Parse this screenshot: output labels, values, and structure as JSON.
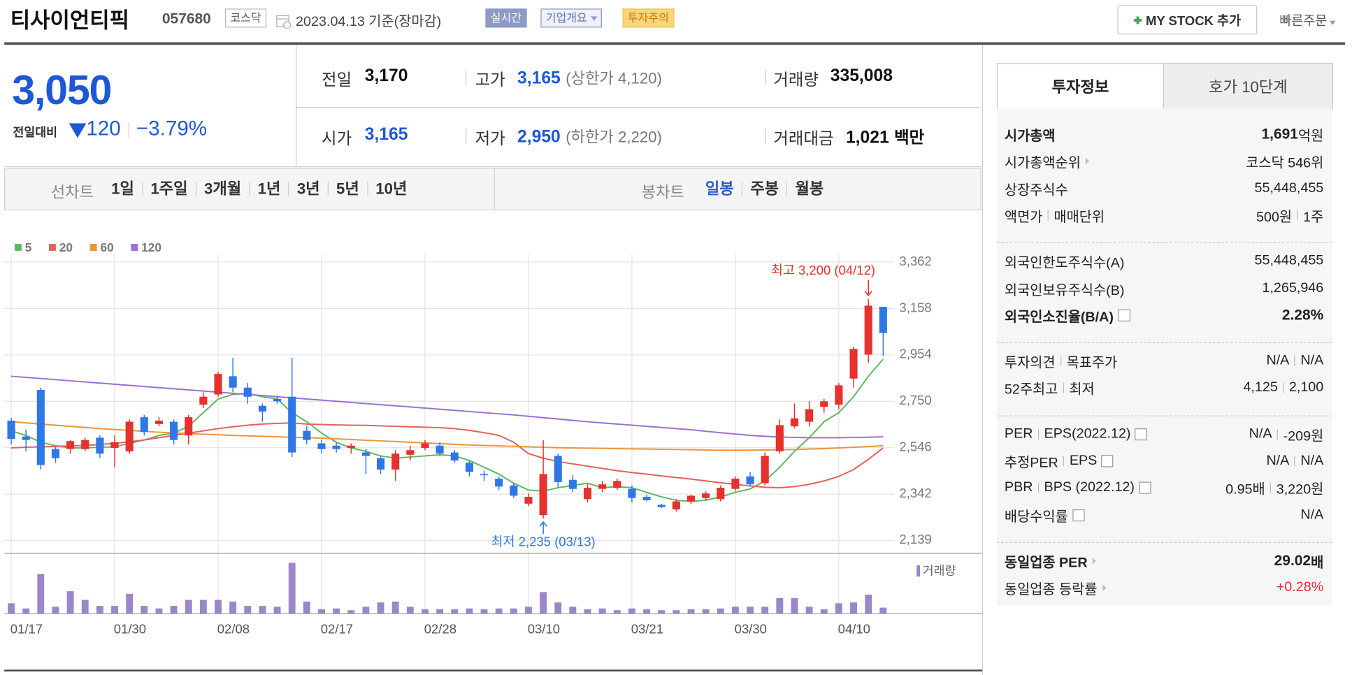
{
  "header": {
    "name": "티사이언티픽",
    "code": "057680",
    "market": "코스닥",
    "date": "2023.04.13 기준(장마감)",
    "badges": [
      "실시간",
      "기업개요",
      "투자주의"
    ],
    "my_stock": "MY STOCK 추가",
    "quick_order": "빠른주문"
  },
  "price": {
    "current": "3,050",
    "change_label": "전일대비",
    "change": "120",
    "change_rate": "−3.79%"
  },
  "summary": [
    [
      {
        "label": "전일",
        "value": "3,170"
      },
      {
        "label": "고가",
        "value": "3,165",
        "note": "(상한가 4,120)"
      },
      {
        "label": "거래량",
        "value": "335,008"
      }
    ],
    [
      {
        "label": "시가",
        "value": "3,165"
      },
      {
        "label": "저가",
        "value": "2,950",
        "note": "(하한가 2,220)"
      },
      {
        "label": "거래대금",
        "value": "1,021",
        "unit": "백만"
      }
    ]
  ],
  "periods": {
    "line_label": "선차트",
    "line": [
      "1일",
      "1주일",
      "3개월",
      "1년",
      "3년",
      "5년",
      "10년"
    ],
    "candle_label": "봉차트",
    "candle": [
      "일봉",
      "주봉",
      "월봉"
    ]
  },
  "chart_data": {
    "type": "candlestick",
    "categories": [
      "01/17",
      null,
      null,
      null,
      null,
      null,
      null,
      "01/30",
      null,
      null,
      null,
      null,
      null,
      null,
      "02/08",
      null,
      null,
      null,
      null,
      null,
      null,
      "02/17",
      null,
      null,
      null,
      null,
      null,
      null,
      "02/28",
      null,
      null,
      null,
      null,
      null,
      null,
      "03/10",
      null,
      null,
      null,
      null,
      null,
      null,
      "03/21",
      null,
      null,
      null,
      null,
      null,
      null,
      "03/30",
      null,
      null,
      null,
      null,
      null,
      null,
      "04/10",
      null,
      null,
      null
    ],
    "open": [
      2665,
      2595,
      2800,
      2540,
      2540,
      2540,
      2590,
      2545,
      2530,
      2680,
      2650,
      2660,
      2600,
      2735,
      2780,
      2860,
      2810,
      2730,
      2760,
      2770,
      2620,
      2565,
      2555,
      2545,
      2525,
      2500,
      2450,
      2515,
      2545,
      2555,
      2525,
      2480,
      2430,
      2410,
      2380,
      2300,
      2250,
      2510,
      2405,
      2320,
      2365,
      2370,
      2365,
      2330,
      2295,
      2275,
      2310,
      2325,
      2320,
      2365,
      2420,
      2390,
      2530,
      2640,
      2660,
      2725,
      2735,
      2850,
      2955,
      3165
    ],
    "high": [
      2677,
      2625,
      2810,
      2550,
      2580,
      2590,
      2600,
      2600,
      2670,
      2690,
      2680,
      2670,
      2690,
      2790,
      2880,
      2940,
      2830,
      2740,
      2775,
      2940,
      2640,
      2580,
      2570,
      2565,
      2540,
      2510,
      2535,
      2555,
      2580,
      2570,
      2535,
      2490,
      2445,
      2420,
      2390,
      2345,
      2580,
      2520,
      2425,
      2385,
      2400,
      2410,
      2380,
      2340,
      2300,
      2320,
      2340,
      2355,
      2380,
      2420,
      2440,
      2525,
      2670,
      2740,
      2750,
      2760,
      2830,
      2990,
      3200,
      3165
    ],
    "low": [
      2560,
      2530,
      2450,
      2480,
      2520,
      2530,
      2500,
      2460,
      2520,
      2600,
      2640,
      2560,
      2560,
      2720,
      2770,
      2790,
      2740,
      2660,
      2740,
      2505,
      2560,
      2520,
      2525,
      2520,
      2430,
      2430,
      2400,
      2490,
      2535,
      2510,
      2480,
      2420,
      2400,
      2360,
      2325,
      2290,
      2235,
      2370,
      2350,
      2305,
      2350,
      2360,
      2305,
      2310,
      2280,
      2265,
      2300,
      2315,
      2310,
      2355,
      2375,
      2380,
      2520,
      2630,
      2640,
      2700,
      2715,
      2810,
      2920,
      2950
    ],
    "close": [
      2585,
      2580,
      2470,
      2500,
      2575,
      2580,
      2520,
      2570,
      2660,
      2615,
      2665,
      2580,
      2680,
      2770,
      2870,
      2810,
      2770,
      2705,
      2750,
      2525,
      2580,
      2540,
      2540,
      2555,
      2510,
      2450,
      2520,
      2535,
      2565,
      2520,
      2490,
      2440,
      2425,
      2375,
      2335,
      2330,
      2430,
      2395,
      2365,
      2370,
      2385,
      2400,
      2325,
      2315,
      2285,
      2310,
      2335,
      2345,
      2370,
      2410,
      2385,
      2510,
      2645,
      2675,
      2715,
      2750,
      2820,
      2980,
      3170,
      3050
    ],
    "up_color": "#e5322d",
    "down_color": "#2e77e6",
    "series": [
      {
        "name": "5",
        "color": "#5cb85c",
        "values": [
          2620,
          2600,
          2570,
          2555,
          2545,
          2545,
          2548,
          2550,
          2565,
          2580,
          2600,
          2610,
          2640,
          2700,
          2760,
          2780,
          2785,
          2770,
          2760,
          2700,
          2660,
          2610,
          2570,
          2545,
          2530,
          2510,
          2500,
          2505,
          2510,
          2515,
          2510,
          2490,
          2460,
          2430,
          2390,
          2360,
          2355,
          2370,
          2380,
          2390,
          2370,
          2375,
          2370,
          2350,
          2330,
          2315,
          2310,
          2315,
          2330,
          2350,
          2365,
          2400,
          2460,
          2530,
          2590,
          2660,
          2700,
          2770,
          2860,
          2935
        ]
      },
      {
        "name": "20",
        "color": "#e8605a",
        "values": [
          2545,
          2548,
          2550,
          2552,
          2554,
          2556,
          2560,
          2565,
          2572,
          2580,
          2590,
          2600,
          2610,
          2620,
          2630,
          2638,
          2645,
          2650,
          2653,
          2655,
          2650,
          2648,
          2646,
          2645,
          2644,
          2642,
          2640,
          2638,
          2636,
          2634,
          2630,
          2622,
          2612,
          2600,
          2570,
          2520,
          2500,
          2485,
          2475,
          2465,
          2455,
          2445,
          2437,
          2430,
          2422,
          2415,
          2408,
          2400,
          2392,
          2385,
          2378,
          2372,
          2370,
          2375,
          2385,
          2400,
          2420,
          2450,
          2495,
          2545
        ]
      },
      {
        "name": "60",
        "color": "#f0933a",
        "values": [
          2660,
          2655,
          2650,
          2645,
          2640,
          2635,
          2630,
          2626,
          2622,
          2618,
          2614,
          2611,
          2608,
          2605,
          2603,
          2600,
          2598,
          2596,
          2594,
          2592,
          2590,
          2588,
          2585,
          2582,
          2579,
          2576,
          2573,
          2570,
          2567,
          2564,
          2561,
          2558,
          2556,
          2554,
          2552,
          2550,
          2548,
          2546,
          2545,
          2544,
          2543,
          2542,
          2541,
          2540,
          2539,
          2538,
          2537,
          2536,
          2535,
          2535,
          2535,
          2536,
          2537,
          2538,
          2540,
          2542,
          2545,
          2548,
          2551,
          2555
        ]
      },
      {
        "name": "120",
        "color": "#9b6fd6",
        "values": [
          2860,
          2855,
          2850,
          2845,
          2840,
          2835,
          2830,
          2825,
          2820,
          2815,
          2810,
          2805,
          2800,
          2795,
          2790,
          2785,
          2780,
          2775,
          2770,
          2765,
          2760,
          2755,
          2750,
          2745,
          2740,
          2735,
          2730,
          2725,
          2720,
          2715,
          2710,
          2705,
          2700,
          2695,
          2690,
          2684,
          2678,
          2672,
          2666,
          2660,
          2655,
          2650,
          2645,
          2640,
          2635,
          2630,
          2625,
          2618,
          2612,
          2606,
          2600,
          2596,
          2593,
          2591,
          2590,
          2590,
          2590,
          2591,
          2592,
          2594
        ]
      }
    ],
    "volume": {
      "name": "거래량",
      "color": "#9a86c8",
      "values": [
        576000,
        288000,
        2208000,
        384000,
        1248000,
        768000,
        432000,
        432000,
        1104000,
        432000,
        288000,
        432000,
        768000,
        768000,
        768000,
        672000,
        432000,
        432000,
        384000,
        2832000,
        672000,
        240000,
        288000,
        192000,
        384000,
        624000,
        672000,
        384000,
        240000,
        240000,
        240000,
        288000,
        240000,
        288000,
        288000,
        384000,
        1200000,
        624000,
        384000,
        240000,
        288000,
        192000,
        288000,
        240000,
        192000,
        192000,
        240000,
        240000,
        288000,
        384000,
        384000,
        384000,
        864000,
        864000,
        384000,
        240000,
        576000,
        624000,
        1056000,
        335008
      ]
    },
    "ylim": [
      2082,
      3396
    ],
    "yticks": [
      {
        "value": 3362,
        "label": "3,362"
      },
      {
        "value": 3158,
        "label": "3,158"
      },
      {
        "value": 2954,
        "label": "2,954"
      },
      {
        "value": 2750,
        "label": "2,750"
      },
      {
        "value": 2546,
        "label": "2,546"
      },
      {
        "value": 2342,
        "label": "2,342"
      },
      {
        "value": 2139,
        "label": "2,139"
      }
    ],
    "grid": true,
    "annotations": {
      "high": "최고 3,200 (04/12)",
      "low": "최저 2,235 (03/13)"
    }
  },
  "info": {
    "tabs": [
      "투자정보",
      "호가 10단계"
    ],
    "groups": [
      [
        {
          "labels": [
            "시가총액"
          ],
          "values": [
            "1,691"
          ],
          "unit": "억원",
          "emphasis": true
        },
        {
          "labels": [
            "시가총액순위"
          ],
          "arrow": true,
          "values": [
            "코스닥 546위"
          ]
        },
        {
          "labels": [
            "상장주식수"
          ],
          "values": [
            "55,448,455"
          ]
        },
        {
          "labels": [
            "액면가",
            "매매단위"
          ],
          "values": [
            "500원",
            "1주"
          ]
        }
      ],
      [
        {
          "labels": [
            "외국인한도주식수(A)"
          ],
          "values": [
            "55,448,455"
          ]
        },
        {
          "labels": [
            "외국인보유주식수(B)"
          ],
          "values": [
            "1,265,946"
          ]
        },
        {
          "labels": [
            "외국인소진율(B/A)"
          ],
          "help": true,
          "values": [
            "2.28%"
          ],
          "emphasis": true
        }
      ],
      [
        {
          "labels": [
            "투자의견",
            "목표주가"
          ],
          "values": [
            "N/A",
            "N/A"
          ]
        },
        {
          "labels": [
            "52주최고",
            "최저"
          ],
          "values": [
            "4,125",
            "2,100"
          ]
        }
      ],
      [
        {
          "labels": [
            "PER",
            "EPS(2022.12)"
          ],
          "help": true,
          "values": [
            "N/A",
            "-209원"
          ]
        },
        {
          "labels": [
            "추정PER",
            "EPS"
          ],
          "help": true,
          "values": [
            "N/A",
            "N/A"
          ]
        },
        {
          "labels": [
            "PBR",
            "BPS (2022.12)"
          ],
          "help": true,
          "values": [
            "0.95배",
            "3,220원"
          ]
        },
        {
          "labels": [
            "배당수익률"
          ],
          "help": true,
          "values": [
            "N/A"
          ]
        }
      ],
      [
        {
          "labels": [
            "동일업종 PER"
          ],
          "arrow": true,
          "values": [
            "29.02"
          ],
          "unit": "배",
          "emphasis": true
        },
        {
          "labels": [
            "동일업종 등락률"
          ],
          "arrow": true,
          "values": [
            "+0.28%"
          ],
          "color": "#e0312f"
        }
      ]
    ]
  }
}
